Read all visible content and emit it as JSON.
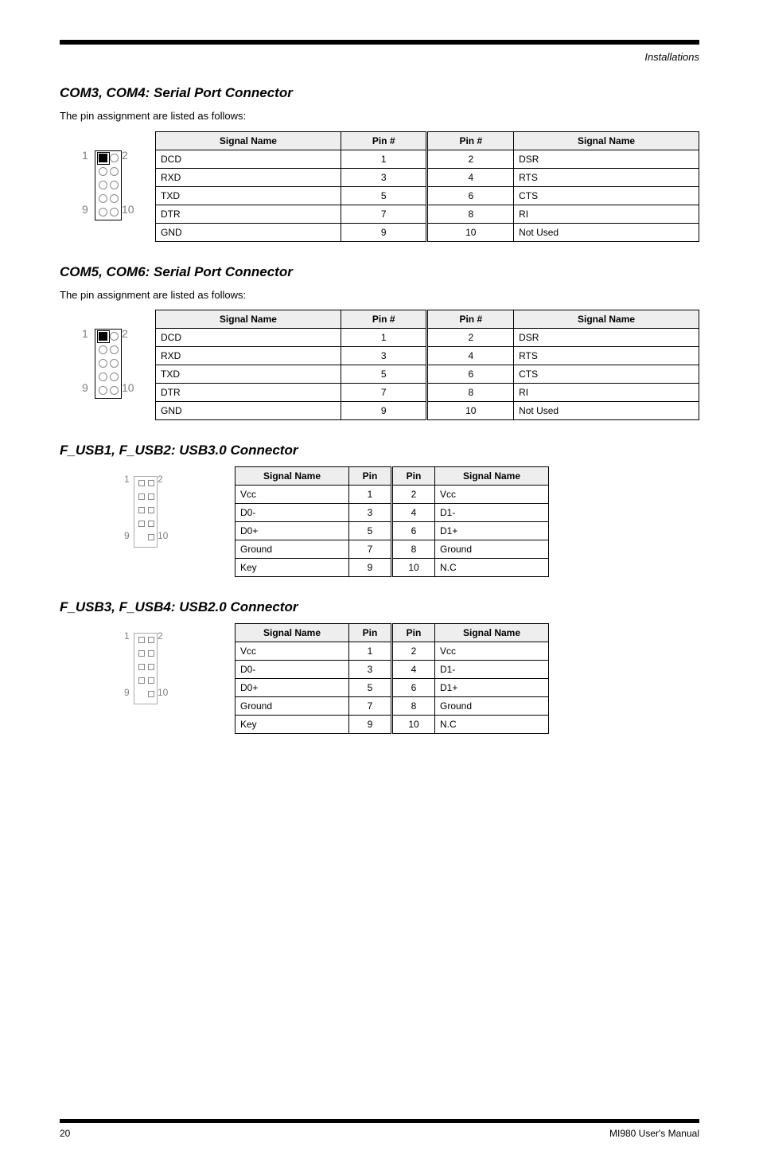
{
  "header_label": "Installations",
  "sections": [
    {
      "title_prefix": "COM3, COM4: ",
      "title_rest": "Serial Port Connector",
      "desc": "The pin assignment are listed as follows:",
      "connector": "A",
      "table_width": "tblA",
      "headers": [
        "Signal Name",
        "Pin #",
        "Pin #",
        "Signal Name"
      ],
      "rows": [
        [
          "DCD",
          "1",
          "2",
          "DSR"
        ],
        [
          "RXD",
          "3",
          "4",
          "RTS"
        ],
        [
          "TXD",
          "5",
          "6",
          "CTS"
        ],
        [
          "DTR",
          "7",
          "8",
          "RI"
        ],
        [
          "GND",
          "9",
          "10",
          "Not Used"
        ]
      ]
    },
    {
      "title_prefix": "COM5, COM6: ",
      "title_rest": "Serial Port Connector",
      "desc": "The pin assignment are listed as follows:",
      "connector": "A",
      "table_width": "tblA",
      "headers": [
        "Signal Name",
        "Pin #",
        "Pin #",
        "Signal Name"
      ],
      "rows": [
        [
          "DCD",
          "1",
          "2",
          "DSR"
        ],
        [
          "RXD",
          "3",
          "4",
          "RTS"
        ],
        [
          "TXD",
          "5",
          "6",
          "CTS"
        ],
        [
          "DTR",
          "7",
          "8",
          "RI"
        ],
        [
          "GND",
          "9",
          "10",
          "Not Used"
        ]
      ]
    },
    {
      "title_prefix": "F_USB1, F_USB2: ",
      "title_rest": "USB3.0 Connector",
      "desc": null,
      "connector": "B",
      "table_width": "tblB",
      "headers": [
        "Signal Name",
        "Pin",
        "Pin",
        "Signal Name"
      ],
      "rows": [
        [
          "Vcc",
          "1",
          "2",
          "Vcc"
        ],
        [
          "D0-",
          "3",
          "4",
          "D1-"
        ],
        [
          "D0+",
          "5",
          "6",
          "D1+"
        ],
        [
          "Ground",
          "7",
          "8",
          "Ground"
        ],
        [
          "Key",
          "9",
          "10",
          "N.C"
        ]
      ]
    },
    {
      "title_prefix": "F_USB3, F_USB4: ",
      "title_rest": "USB2.0 Connector",
      "desc": null,
      "connector": "B",
      "table_width": "tblB",
      "headers": [
        "Signal Name",
        "Pin",
        "Pin",
        "Signal Name"
      ],
      "rows": [
        [
          "Vcc",
          "1",
          "2",
          "Vcc"
        ],
        [
          "D0-",
          "3",
          "4",
          "D1-"
        ],
        [
          "D0+",
          "5",
          "6",
          "D1+"
        ],
        [
          "Ground",
          "7",
          "8",
          "Ground"
        ],
        [
          "Key",
          "9",
          "10",
          "N.C"
        ]
      ]
    }
  ],
  "footer": {
    "page": "20",
    "doc": "MI980 User's Manual"
  },
  "colors": {
    "rule": "#000000",
    "tableHeader": "#eeeeee",
    "tableBorder": "#000000",
    "connectorStroke": "#888888",
    "text": "#000000",
    "background": "#ffffff",
    "labelGray": "#808080"
  }
}
